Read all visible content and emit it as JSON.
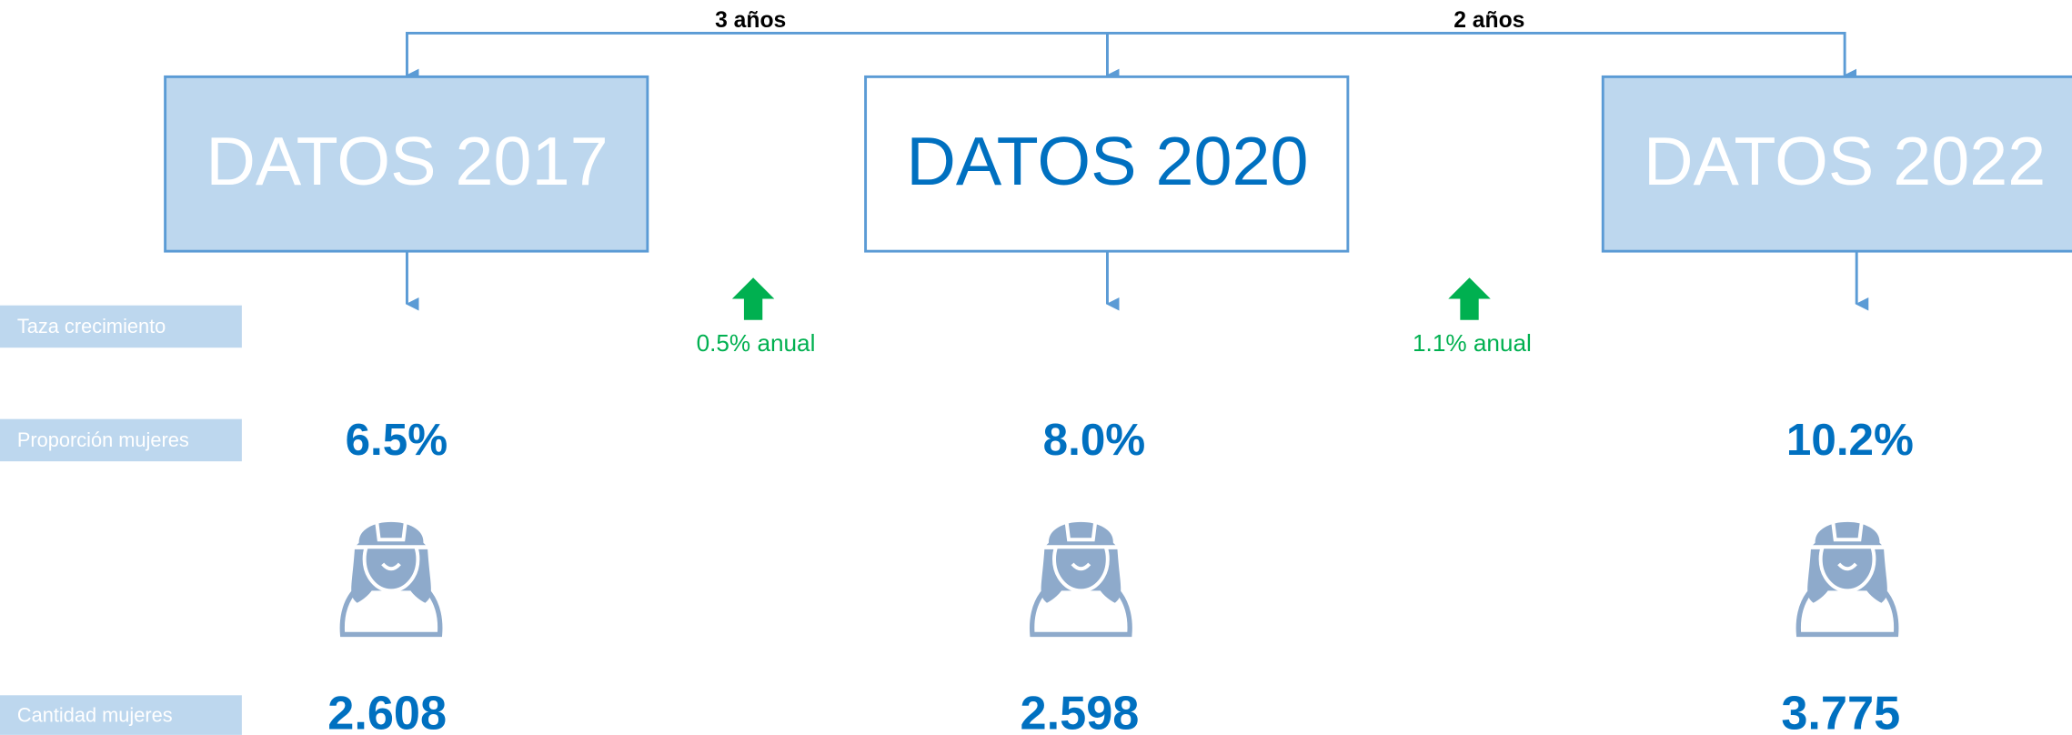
{
  "intervals": [
    "3 años",
    "2 años"
  ],
  "boxes": [
    "DATOS 2017",
    "DATOS 2020",
    "DATOS 2022"
  ],
  "growth": [
    "0.5% anual",
    "1.1% anual"
  ],
  "row_labels": [
    "Taza crecimiento",
    "Proporción mujeres",
    "Cantidad mujeres"
  ],
  "proportions": [
    "6.5%",
    "8.0%",
    "10.2%"
  ],
  "counts": [
    "2.608",
    "2.598",
    "3.775"
  ]
}
